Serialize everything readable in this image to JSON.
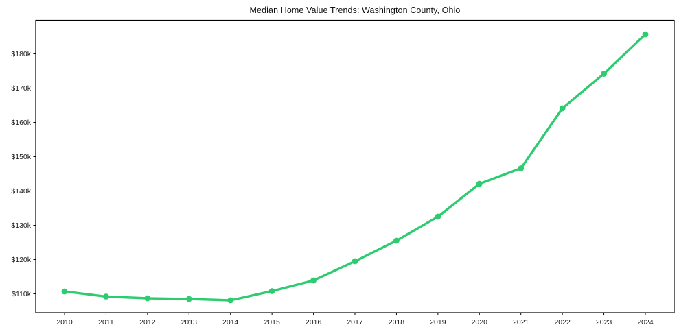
{
  "figure": {
    "background": "#ffffff"
  },
  "chart_data": {
    "type": "line",
    "title": "Median Home Value Trends: Washington County, Ohio",
    "series_name": "Median home value",
    "x": [
      2010,
      2011,
      2012,
      2013,
      2014,
      2015,
      2016,
      2017,
      2018,
      2019,
      2020,
      2021,
      2022,
      2023,
      2024
    ],
    "x_tick_labels": [
      "2010",
      "2011",
      "2012",
      "2013",
      "2014",
      "2015",
      "2016",
      "2017",
      "2018",
      "2019",
      "2020",
      "2021",
      "2022",
      "2023",
      "2024"
    ],
    "values_thousands": [
      110.7,
      109.2,
      108.7,
      108.5,
      108.1,
      110.8,
      113.9,
      119.5,
      125.5,
      132.5,
      142.1,
      146.6,
      164.1,
      174.2,
      185.7
    ],
    "values_usd": [
      110700,
      109200,
      108700,
      108500,
      108100,
      110800,
      113900,
      119500,
      125500,
      132500,
      142100,
      146600,
      164100,
      174200,
      185700
    ],
    "y_ticks_thousands": [
      110,
      120,
      130,
      140,
      150,
      160,
      170,
      180
    ],
    "y_tick_labels": [
      "$110k",
      "$120k",
      "$130k",
      "$140k",
      "$150k",
      "$160k",
      "$170k",
      "$180k"
    ],
    "ylim_thousands": [
      104.5,
      189.8
    ],
    "xlabel": "",
    "ylabel": "",
    "grid": false,
    "legend": "none",
    "marker": "circle",
    "line_color": "#2ecc71",
    "axis_color": "#000000",
    "tick_label_color": "#1a1a1a"
  }
}
